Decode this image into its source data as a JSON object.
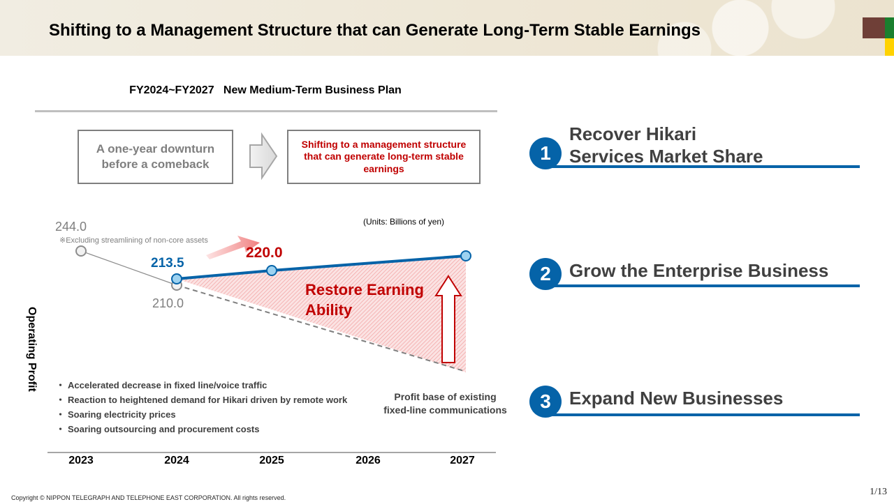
{
  "header": {
    "title": "Shifting to a Management Structure that can Generate Long-Term Stable Earnings",
    "swatch_colors": [
      "#6f3f37",
      "#1a7f2e",
      "#ffd200"
    ]
  },
  "plan": {
    "title": "FY2024~FY2027   New Medium-Term Business Plan",
    "from_box": "A one-year downturn before a comeback",
    "to_box": "Shifting to a management structure that can generate long-term stable earnings"
  },
  "chart_data": {
    "type": "line",
    "units": "(Units: Billions of yen)",
    "ylabel": "Operating Profit",
    "x": [
      "2023",
      "2024",
      "2025",
      "2026",
      "2027"
    ],
    "series": [
      {
        "values": [
          244.0,
          210.0,
          null,
          null,
          null
        ],
        "color": "#7f7f7f",
        "labels": [
          "244.0",
          "210.0"
        ]
      },
      {
        "values": [
          null,
          213.5,
          220.0,
          null,
          null
        ],
        "color": "#0563a8",
        "labels": [
          "213.5",
          "220.0"
        ],
        "note": "2027 point continues the rising trend"
      },
      {
        "values": [
          null,
          210.0,
          null,
          null,
          null
        ],
        "color": "#7f7f7f",
        "style": "dashed",
        "label": "Profit base of existing fixed-line communications"
      }
    ],
    "annotations": {
      "footnote": "※Excluding streamlining of non-core assets",
      "restore": "Restore Earning Ability",
      "base": "Profit base of existing\nfixed-line communications"
    },
    "bullets": [
      "Accelerated decrease in fixed line/voice traffic",
      "Reaction to heightened demand for Hikari driven by remote work",
      "Soaring electricity prices",
      "Soaring outsourcing and procurement costs"
    ]
  },
  "strategies": [
    {
      "number": "1",
      "label": "Recover Hikari\nServices Market Share"
    },
    {
      "number": "2",
      "label": "Grow the Enterprise Business"
    },
    {
      "number": "3",
      "label": "Expand New Businesses"
    }
  ],
  "footer": {
    "page": "1/13",
    "copyright": "Copyright © NIPPON TELEGRAPH AND TELEPHONE EAST CORPORATION. All rights reserved."
  }
}
